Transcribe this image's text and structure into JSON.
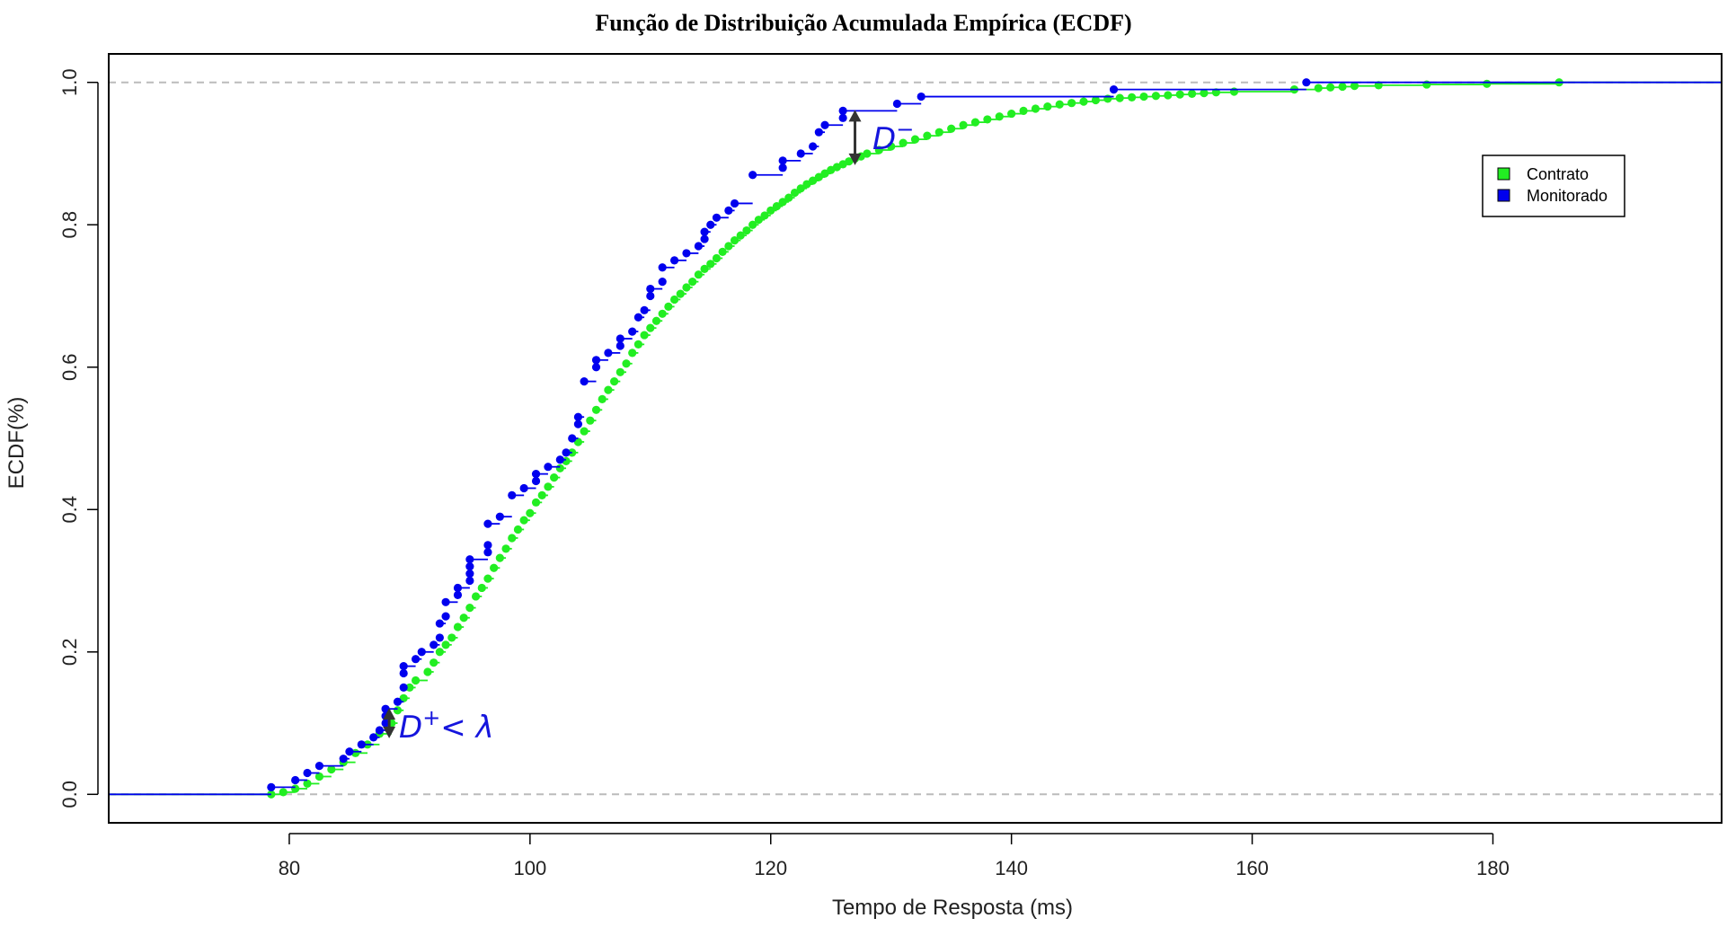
{
  "chart_data": {
    "type": "scatter",
    "title": "Função de Distribuição Acumulada Empírica (ECDF)",
    "xlabel": "Tempo de Resposta (ms)",
    "ylabel": "ECDF(%)",
    "xlim": [
      65,
      199
    ],
    "ylim": [
      -0.04,
      1.04
    ],
    "xticks": [
      80,
      100,
      120,
      140,
      160,
      180
    ],
    "yticks": [
      0.0,
      0.2,
      0.4,
      0.6,
      0.8,
      1.0
    ],
    "x_tick_labels": [
      "80",
      "100",
      "120",
      "140",
      "160",
      "180"
    ],
    "y_tick_labels": [
      "0.0",
      "0.2",
      "0.4",
      "0.6",
      "0.8",
      "1.0"
    ],
    "reference_lines": [
      0,
      1
    ],
    "grid": false,
    "legend_position": "top-right",
    "series": [
      {
        "name": "Contrato",
        "color": "#22ee22",
        "points": [
          [
            78.5,
            0.0
          ],
          [
            79.5,
            0.003
          ],
          [
            80.5,
            0.008
          ],
          [
            81.5,
            0.015
          ],
          [
            82.5,
            0.025
          ],
          [
            83.5,
            0.035
          ],
          [
            84.5,
            0.045
          ],
          [
            85.5,
            0.058
          ],
          [
            86.5,
            0.07
          ],
          [
            87.5,
            0.085
          ],
          [
            88.5,
            0.1
          ],
          [
            89.0,
            0.118
          ],
          [
            89.5,
            0.135
          ],
          [
            90.0,
            0.15
          ],
          [
            90.5,
            0.16
          ],
          [
            91.5,
            0.172
          ],
          [
            92.0,
            0.185
          ],
          [
            92.5,
            0.2
          ],
          [
            93.0,
            0.21
          ],
          [
            93.5,
            0.22
          ],
          [
            94.0,
            0.235
          ],
          [
            94.5,
            0.248
          ],
          [
            95.0,
            0.262
          ],
          [
            95.5,
            0.278
          ],
          [
            96.0,
            0.29
          ],
          [
            96.5,
            0.303
          ],
          [
            97.0,
            0.318
          ],
          [
            97.5,
            0.332
          ],
          [
            98.0,
            0.345
          ],
          [
            98.5,
            0.36
          ],
          [
            99.0,
            0.372
          ],
          [
            99.5,
            0.385
          ],
          [
            100.0,
            0.395
          ],
          [
            100.5,
            0.41
          ],
          [
            101.0,
            0.42
          ],
          [
            101.5,
            0.432
          ],
          [
            102.0,
            0.445
          ],
          [
            102.5,
            0.458
          ],
          [
            103.0,
            0.468
          ],
          [
            103.5,
            0.48
          ],
          [
            104.0,
            0.495
          ],
          [
            104.5,
            0.51
          ],
          [
            105.0,
            0.525
          ],
          [
            105.5,
            0.54
          ],
          [
            106.0,
            0.555
          ],
          [
            106.5,
            0.568
          ],
          [
            107.0,
            0.58
          ],
          [
            107.5,
            0.593
          ],
          [
            108.0,
            0.605
          ],
          [
            108.5,
            0.62
          ],
          [
            109.0,
            0.632
          ],
          [
            109.5,
            0.645
          ],
          [
            110.0,
            0.655
          ],
          [
            110.5,
            0.665
          ],
          [
            111.0,
            0.675
          ],
          [
            111.5,
            0.685
          ],
          [
            112.0,
            0.695
          ],
          [
            112.5,
            0.703
          ],
          [
            113.0,
            0.712
          ],
          [
            113.5,
            0.72
          ],
          [
            114.0,
            0.73
          ],
          [
            114.5,
            0.738
          ],
          [
            115.0,
            0.745
          ],
          [
            115.5,
            0.753
          ],
          [
            116.0,
            0.762
          ],
          [
            116.5,
            0.77
          ],
          [
            117.0,
            0.778
          ],
          [
            117.5,
            0.785
          ],
          [
            118.0,
            0.792
          ],
          [
            118.5,
            0.8
          ],
          [
            119.0,
            0.807
          ],
          [
            119.5,
            0.813
          ],
          [
            120.0,
            0.82
          ],
          [
            120.5,
            0.826
          ],
          [
            121.0,
            0.832
          ],
          [
            121.5,
            0.838
          ],
          [
            122.0,
            0.845
          ],
          [
            122.5,
            0.851
          ],
          [
            123.0,
            0.857
          ],
          [
            123.5,
            0.862
          ],
          [
            124.0,
            0.867
          ],
          [
            124.5,
            0.872
          ],
          [
            125.0,
            0.877
          ],
          [
            125.5,
            0.881
          ],
          [
            126.0,
            0.885
          ],
          [
            126.5,
            0.889
          ],
          [
            127.0,
            0.893
          ],
          [
            127.5,
            0.896
          ],
          [
            128.0,
            0.9
          ],
          [
            129.0,
            0.905
          ],
          [
            130.0,
            0.91
          ],
          [
            131.0,
            0.915
          ],
          [
            132.0,
            0.92
          ],
          [
            133.0,
            0.925
          ],
          [
            134.0,
            0.93
          ],
          [
            135.0,
            0.935
          ],
          [
            136.0,
            0.94
          ],
          [
            137.0,
            0.944
          ],
          [
            138.0,
            0.948
          ],
          [
            139.0,
            0.952
          ],
          [
            140.0,
            0.956
          ],
          [
            141.0,
            0.96
          ],
          [
            142.0,
            0.963
          ],
          [
            143.0,
            0.966
          ],
          [
            144.0,
            0.969
          ],
          [
            145.0,
            0.971
          ],
          [
            146.0,
            0.973
          ],
          [
            147.0,
            0.975
          ],
          [
            148.0,
            0.977
          ],
          [
            149.0,
            0.978
          ],
          [
            150.0,
            0.979
          ],
          [
            151.0,
            0.98
          ],
          [
            152.0,
            0.981
          ],
          [
            153.0,
            0.982
          ],
          [
            154.0,
            0.983
          ],
          [
            155.0,
            0.984
          ],
          [
            156.0,
            0.985
          ],
          [
            157.0,
            0.986
          ],
          [
            158.5,
            0.987
          ],
          [
            163.5,
            0.99
          ],
          [
            165.5,
            0.992
          ],
          [
            166.5,
            0.993
          ],
          [
            167.5,
            0.994
          ],
          [
            168.5,
            0.995
          ],
          [
            170.5,
            0.996
          ],
          [
            174.5,
            0.997
          ],
          [
            179.5,
            0.998
          ],
          [
            185.5,
            1.0
          ]
        ]
      },
      {
        "name": "Monitorado",
        "color": "#0000ee",
        "points": [
          [
            78.5,
            0.01
          ],
          [
            80.5,
            0.02
          ],
          [
            81.5,
            0.03
          ],
          [
            82.5,
            0.04
          ],
          [
            84.5,
            0.05
          ],
          [
            85.0,
            0.06
          ],
          [
            86.0,
            0.07
          ],
          [
            87.0,
            0.08
          ],
          [
            87.5,
            0.09
          ],
          [
            88.0,
            0.1
          ],
          [
            88.0,
            0.11
          ],
          [
            88.0,
            0.12
          ],
          [
            89.0,
            0.13
          ],
          [
            89.5,
            0.15
          ],
          [
            89.5,
            0.17
          ],
          [
            89.5,
            0.18
          ],
          [
            90.5,
            0.19
          ],
          [
            91.0,
            0.2
          ],
          [
            92.0,
            0.21
          ],
          [
            92.5,
            0.22
          ],
          [
            92.5,
            0.24
          ],
          [
            93.0,
            0.25
          ],
          [
            93.0,
            0.27
          ],
          [
            94.0,
            0.28
          ],
          [
            94.0,
            0.29
          ],
          [
            95.0,
            0.3
          ],
          [
            95.0,
            0.31
          ],
          [
            95.0,
            0.32
          ],
          [
            95.0,
            0.33
          ],
          [
            96.5,
            0.34
          ],
          [
            96.5,
            0.35
          ],
          [
            96.5,
            0.38
          ],
          [
            97.5,
            0.39
          ],
          [
            98.5,
            0.42
          ],
          [
            99.5,
            0.43
          ],
          [
            100.5,
            0.44
          ],
          [
            100.5,
            0.45
          ],
          [
            101.5,
            0.46
          ],
          [
            102.5,
            0.47
          ],
          [
            103.0,
            0.48
          ],
          [
            103.5,
            0.5
          ],
          [
            104.0,
            0.52
          ],
          [
            104.0,
            0.53
          ],
          [
            104.5,
            0.58
          ],
          [
            105.5,
            0.6
          ],
          [
            105.5,
            0.61
          ],
          [
            106.5,
            0.62
          ],
          [
            107.5,
            0.63
          ],
          [
            107.5,
            0.64
          ],
          [
            108.5,
            0.65
          ],
          [
            109.0,
            0.67
          ],
          [
            109.5,
            0.68
          ],
          [
            110.0,
            0.7
          ],
          [
            110.0,
            0.71
          ],
          [
            111.0,
            0.72
          ],
          [
            111.0,
            0.74
          ],
          [
            112.0,
            0.75
          ],
          [
            113.0,
            0.76
          ],
          [
            114.0,
            0.77
          ],
          [
            114.5,
            0.78
          ],
          [
            114.5,
            0.79
          ],
          [
            115.0,
            0.8
          ],
          [
            115.5,
            0.81
          ],
          [
            116.5,
            0.82
          ],
          [
            117.0,
            0.83
          ],
          [
            118.5,
            0.87
          ],
          [
            121.0,
            0.88
          ],
          [
            121.0,
            0.89
          ],
          [
            122.5,
            0.9
          ],
          [
            123.5,
            0.91
          ],
          [
            124.0,
            0.93
          ],
          [
            124.5,
            0.94
          ],
          [
            126.0,
            0.95
          ],
          [
            126.0,
            0.96
          ],
          [
            130.5,
            0.97
          ],
          [
            132.5,
            0.98
          ],
          [
            148.5,
            0.99
          ],
          [
            164.5,
            1.0
          ]
        ]
      }
    ],
    "annotations": {
      "d_minus": "D",
      "d_minus_sup": "−",
      "d_plus": "D",
      "d_plus_sup": "+",
      "d_plus_rest": "< λ"
    },
    "colors": {
      "annotation_text": "#1515dd",
      "arrow": "#333333",
      "dashed_ref": "#bbbbbb"
    }
  }
}
